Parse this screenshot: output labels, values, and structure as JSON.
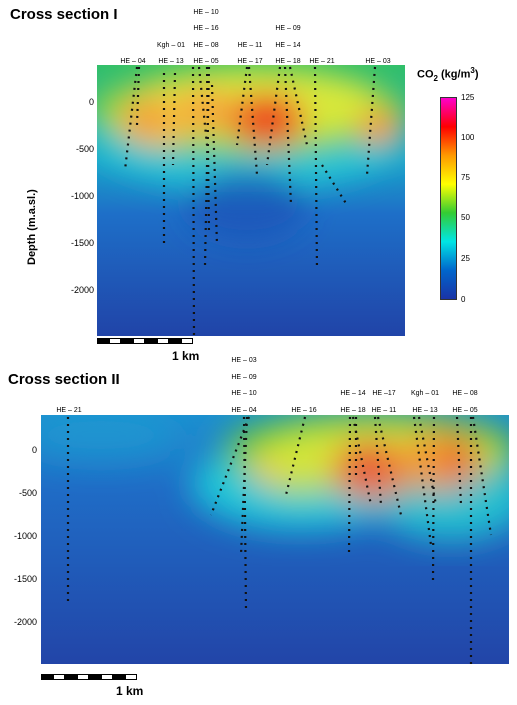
{
  "section1": {
    "title": "Cross section I",
    "y_ticks": [
      "0",
      "-500",
      "-1000",
      "-1500",
      "-2000"
    ],
    "well_labels": [
      {
        "text": "HE – 04"
      },
      {
        "text": "Kgh – 01"
      },
      {
        "text": "HE – 13"
      },
      {
        "text": "HE – 10"
      },
      {
        "text": "HE – 16"
      },
      {
        "text": "HE – 08"
      },
      {
        "text": "HE – 05"
      },
      {
        "text": "HE – 11"
      },
      {
        "text": "HE – 17"
      },
      {
        "text": "HE – 09"
      },
      {
        "text": "HE – 14"
      },
      {
        "text": "HE – 18"
      },
      {
        "text": "HE – 21"
      },
      {
        "text": "HE – 03"
      }
    ],
    "scale_label": "1 km"
  },
  "section2": {
    "title": "Cross section II",
    "y_ticks": [
      "0",
      "-500",
      "-1000",
      "-1500",
      "-2000"
    ],
    "well_labels": [
      {
        "text": "HE – 21"
      },
      {
        "text": "HE – 03"
      },
      {
        "text": "HE – 09"
      },
      {
        "text": "HE – 10"
      },
      {
        "text": "HE – 04"
      },
      {
        "text": "HE – 16"
      },
      {
        "text": "HE – 14"
      },
      {
        "text": "HE – 18"
      },
      {
        "text": "HE –17"
      },
      {
        "text": "HE – 11"
      },
      {
        "text": "Kgh – 01"
      },
      {
        "text": "HE – 13"
      },
      {
        "text": "HE – 08"
      },
      {
        "text": "HE – 05"
      }
    ],
    "scale_label": "1 km"
  },
  "y_axis_label": "Depth (m.a.sl.)",
  "colorbar": {
    "title_prefix": "CO",
    "title_sub": "2",
    "title_units": " (kg/m",
    "title_sup": "3",
    "title_close": ")",
    "ticks": [
      "125",
      "100",
      "75",
      "50",
      "25",
      "0"
    ],
    "colors": [
      "#ff00cc",
      "#ff0000",
      "#ff9900",
      "#ffff00",
      "#33cc33",
      "#00e5e5",
      "#0066cc",
      "#1a33a6"
    ]
  }
}
